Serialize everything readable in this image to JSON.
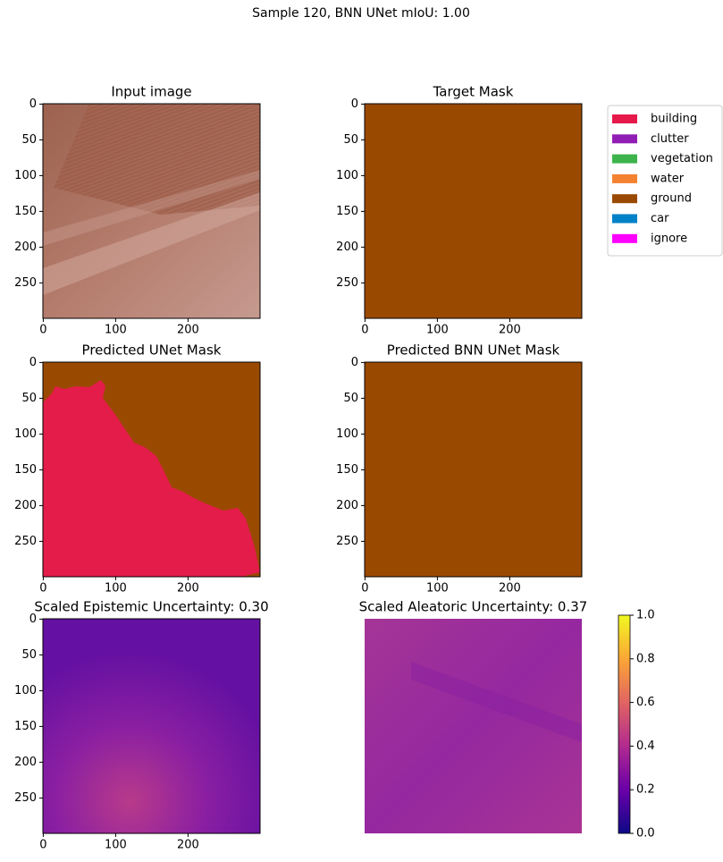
{
  "title": "Sample 120, BNN UNet mIoU: 1.00",
  "chart_data": [
    {
      "type": "image",
      "title": "Input image",
      "xlim": [
        -0.5,
        299.5
      ],
      "ylim": [
        299.5,
        -0.5
      ],
      "xticks": [
        0,
        100,
        200
      ],
      "yticks": [
        0,
        50,
        100,
        150,
        200,
        250
      ]
    },
    {
      "type": "image",
      "title": "Target Mask",
      "xlim": [
        -0.5,
        299.5
      ],
      "ylim": [
        299.5,
        -0.5
      ],
      "xticks": [
        0,
        100,
        200
      ],
      "yticks": [
        0,
        50,
        100,
        150,
        200,
        250
      ]
    },
    {
      "type": "image",
      "title": "Predicted UNet Mask",
      "xlim": [
        -0.5,
        299.5
      ],
      "ylim": [
        299.5,
        -0.5
      ],
      "xticks": [
        0,
        100,
        200
      ],
      "yticks": [
        0,
        50,
        100,
        150,
        200,
        250
      ]
    },
    {
      "type": "image",
      "title": "Predicted BNN UNet Mask",
      "xlim": [
        -0.5,
        299.5
      ],
      "ylim": [
        299.5,
        -0.5
      ],
      "xticks": [
        0,
        100,
        200
      ],
      "yticks": [
        0,
        50,
        100,
        150,
        200,
        250
      ]
    },
    {
      "type": "image",
      "title": "Scaled Epistemic Uncertainty: 0.30",
      "xlim": [
        -0.5,
        299.5
      ],
      "ylim": [
        299.5,
        -0.5
      ],
      "xticks": [
        0,
        100,
        200
      ],
      "yticks": [
        0,
        50,
        100,
        150,
        200,
        250
      ]
    },
    {
      "type": "image",
      "title": "Scaled Aleatoric Uncertainty: 0.37"
    }
  ],
  "legend": {
    "items": [
      {
        "name": "building",
        "color": "#e6194b"
      },
      {
        "name": "clutter",
        "color": "#911eb4"
      },
      {
        "name": "vegetation",
        "color": "#3cb44b"
      },
      {
        "name": "water",
        "color": "#f58231"
      },
      {
        "name": "ground",
        "color": "#9a4a00"
      },
      {
        "name": "car",
        "color": "#0082c8"
      },
      {
        "name": "ignore",
        "color": "#ff00ff"
      }
    ]
  },
  "colorbar": {
    "ylim": [
      0,
      1
    ],
    "yticks": [
      {
        "value": 0,
        "label": "0.0"
      },
      0.2,
      0.4,
      0.6,
      0.8,
      {
        "value": 1,
        "label": "1.0"
      }
    ]
  }
}
